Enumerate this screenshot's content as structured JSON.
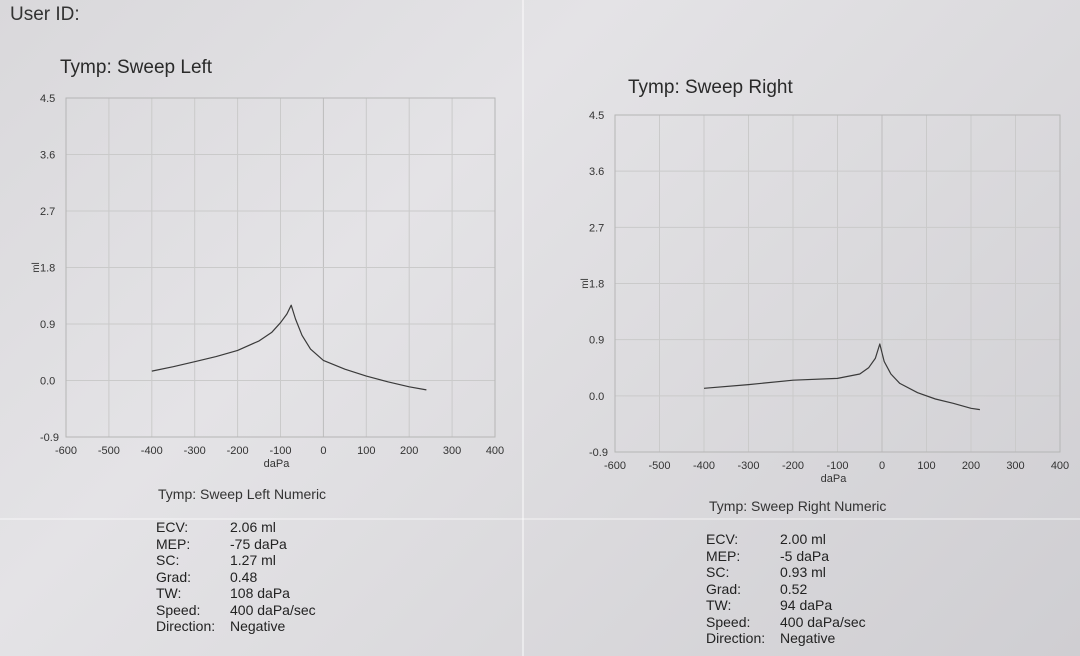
{
  "header": {
    "user_id_label": "User ID:"
  },
  "chart_data": [
    {
      "type": "line",
      "title": "Tymp: Sweep Left",
      "xlabel": "daPa",
      "ylabel": "ml",
      "xlim": [
        -600,
        400
      ],
      "ylim": [
        -0.9,
        4.5
      ],
      "xticks": [
        -600,
        -500,
        -400,
        -300,
        -200,
        -100,
        0,
        100,
        200,
        300,
        400
      ],
      "yticks": [
        -0.9,
        0.0,
        0.9,
        1.8,
        2.7,
        3.6,
        4.5
      ],
      "ytick_labels": [
        "-0.9",
        "0.0",
        "0.9",
        "1.8",
        "2.7",
        "3.6",
        "4.5"
      ],
      "grid": true,
      "series": [
        {
          "x": [
            -400,
            -350,
            -300,
            -250,
            -200,
            -150,
            -120,
            -100,
            -85,
            -75,
            -65,
            -50,
            -30,
            0,
            50,
            100,
            150,
            200,
            240
          ],
          "y": [
            0.15,
            0.22,
            0.3,
            0.38,
            0.48,
            0.63,
            0.77,
            0.92,
            1.06,
            1.2,
            0.98,
            0.72,
            0.5,
            0.32,
            0.18,
            0.07,
            -0.02,
            -0.1,
            -0.15
          ]
        }
      ],
      "numeric": {
        "title": "Tymp: Sweep Left Numeric",
        "rows": [
          {
            "label": "ECV:",
            "value": "2.06 ml"
          },
          {
            "label": "MEP:",
            "value": "-75 daPa"
          },
          {
            "label": "SC:",
            "value": "1.27 ml"
          },
          {
            "label": "Grad:",
            "value": "0.48"
          },
          {
            "label": "TW:",
            "value": "108 daPa"
          },
          {
            "label": "Speed:",
            "value": "400 daPa/sec"
          },
          {
            "label": "Direction:",
            "value": "Negative"
          }
        ]
      }
    },
    {
      "type": "line",
      "title": "Tymp: Sweep Right",
      "xlabel": "daPa",
      "ylabel": "ml",
      "xlim": [
        -600,
        400
      ],
      "ylim": [
        -0.9,
        4.5
      ],
      "xticks": [
        -600,
        -500,
        -400,
        -300,
        -200,
        -100,
        0,
        100,
        200,
        300,
        400
      ],
      "yticks": [
        -0.9,
        0.0,
        0.9,
        1.8,
        2.7,
        3.6,
        4.5
      ],
      "ytick_labels": [
        "-0.9",
        "0.0",
        "0.9",
        "1.8",
        "2.7",
        "3.6",
        "4.5"
      ],
      "grid": true,
      "series": [
        {
          "x": [
            -400,
            -300,
            -200,
            -100,
            -50,
            -30,
            -15,
            -5,
            5,
            20,
            40,
            80,
            120,
            160,
            200,
            220
          ],
          "y": [
            0.12,
            0.18,
            0.25,
            0.28,
            0.35,
            0.45,
            0.6,
            0.83,
            0.55,
            0.35,
            0.2,
            0.05,
            -0.05,
            -0.12,
            -0.2,
            -0.22
          ]
        }
      ],
      "numeric": {
        "title": "Tymp: Sweep Right Numeric",
        "rows": [
          {
            "label": "ECV:",
            "value": "2.00 ml"
          },
          {
            "label": "MEP:",
            "value": "-5 daPa"
          },
          {
            "label": "SC:",
            "value": "0.93 ml"
          },
          {
            "label": "Grad:",
            "value": "0.52"
          },
          {
            "label": "TW:",
            "value": "94 daPa"
          },
          {
            "label": "Speed:",
            "value": "400 daPa/sec"
          },
          {
            "label": "Direction:",
            "value": "Negative"
          }
        ]
      }
    }
  ]
}
